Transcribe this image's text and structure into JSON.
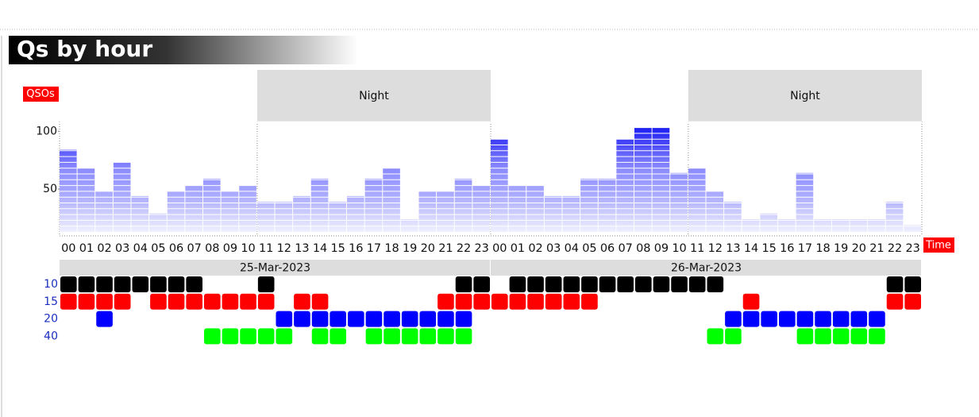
{
  "chart_data": {
    "type": "bar",
    "title": "Qs by hour",
    "y_label": "QSOs",
    "x_label": "Time",
    "categories": [
      "00",
      "01",
      "02",
      "03",
      "04",
      "05",
      "06",
      "07",
      "08",
      "09",
      "10",
      "11",
      "12",
      "13",
      "14",
      "15",
      "16",
      "17",
      "18",
      "19",
      "20",
      "21",
      "22",
      "23",
      "00",
      "01",
      "02",
      "03",
      "04",
      "05",
      "06",
      "07",
      "08",
      "09",
      "10",
      "11",
      "12",
      "13",
      "14",
      "15",
      "16",
      "17",
      "18",
      "19",
      "20",
      "21",
      "22",
      "23"
    ],
    "values": [
      84,
      68,
      48,
      73,
      44,
      29,
      48,
      53,
      59,
      48,
      53,
      39,
      39,
      44,
      59,
      39,
      44,
      59,
      68,
      24,
      48,
      48,
      59,
      53,
      93,
      53,
      53,
      44,
      44,
      59,
      59,
      93,
      103,
      103,
      64,
      68,
      48,
      39,
      24,
      29,
      24,
      64,
      24,
      24,
      24,
      24,
      39,
      19
    ],
    "ylim": [
      13,
      105
    ],
    "yticks": [
      50,
      100
    ],
    "dates": [
      "25-Mar-2023",
      "26-Mar-2023"
    ],
    "regions": [
      {
        "label": "Night",
        "from": 11,
        "to": 24
      },
      {
        "label": "Night",
        "from": 35,
        "to": 48
      }
    ],
    "bands": [
      {
        "name": "10",
        "color": "#000000",
        "active": [
          1,
          1,
          1,
          1,
          1,
          1,
          1,
          1,
          0,
          0,
          0,
          1,
          0,
          0,
          0,
          0,
          0,
          0,
          0,
          0,
          0,
          0,
          1,
          1,
          0,
          1,
          1,
          1,
          1,
          1,
          1,
          1,
          1,
          1,
          1,
          1,
          1,
          0,
          0,
          0,
          0,
          0,
          0,
          0,
          0,
          0,
          1,
          1
        ]
      },
      {
        "name": "15",
        "color": "#ff0000",
        "active": [
          1,
          1,
          1,
          1,
          0,
          1,
          1,
          1,
          1,
          1,
          1,
          1,
          0,
          1,
          1,
          0,
          0,
          0,
          0,
          0,
          0,
          1,
          1,
          1,
          1,
          1,
          1,
          1,
          1,
          1,
          0,
          0,
          0,
          0,
          0,
          0,
          0,
          0,
          1,
          0,
          0,
          0,
          0,
          0,
          0,
          0,
          1,
          1
        ]
      },
      {
        "name": "20",
        "color": "#0000ff",
        "active": [
          0,
          0,
          1,
          0,
          0,
          0,
          0,
          0,
          0,
          0,
          0,
          0,
          1,
          1,
          1,
          1,
          1,
          1,
          1,
          1,
          1,
          1,
          1,
          0,
          0,
          0,
          0,
          0,
          0,
          0,
          0,
          0,
          0,
          0,
          0,
          0,
          0,
          1,
          1,
          1,
          1,
          1,
          1,
          1,
          1,
          1,
          0,
          0
        ]
      },
      {
        "name": "40",
        "color": "#00ff00",
        "active": [
          0,
          0,
          0,
          0,
          0,
          0,
          0,
          0,
          1,
          1,
          1,
          1,
          1,
          0,
          1,
          1,
          0,
          1,
          1,
          1,
          1,
          1,
          1,
          0,
          0,
          0,
          0,
          0,
          0,
          0,
          0,
          0,
          0,
          0,
          0,
          0,
          1,
          1,
          0,
          0,
          0,
          1,
          1,
          1,
          1,
          1,
          0,
          0
        ]
      }
    ]
  }
}
